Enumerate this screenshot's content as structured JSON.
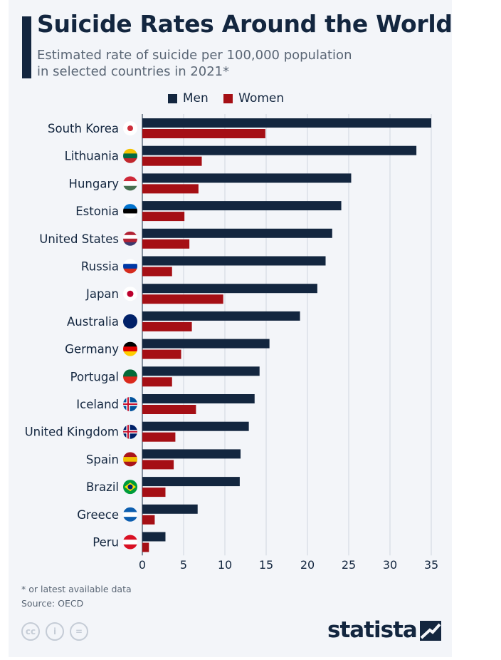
{
  "chart_data": {
    "type": "bar",
    "orientation": "horizontal",
    "title": "Suicide Rates Around the World",
    "subtitle_lines": [
      "Estimated rate of suicide per 100,000 population",
      "in selected countries in 2021*"
    ],
    "categories": [
      "South Korea",
      "Lithuania",
      "Hungary",
      "Estonia",
      "United States",
      "Russia",
      "Japan",
      "Australia",
      "Germany",
      "Portugal",
      "Iceland",
      "United Kingdom",
      "Spain",
      "Brazil",
      "Greece",
      "Peru"
    ],
    "series": [
      {
        "name": "Men",
        "color": "#13263f",
        "values": [
          35.0,
          33.2,
          25.3,
          24.1,
          23.0,
          22.2,
          21.2,
          19.1,
          15.4,
          14.2,
          13.6,
          12.9,
          11.9,
          11.8,
          6.7,
          2.8
        ]
      },
      {
        "name": "Women",
        "color": "#a50f15",
        "values": [
          14.9,
          7.2,
          6.8,
          5.1,
          5.7,
          3.6,
          9.8,
          6.0,
          4.7,
          3.6,
          6.5,
          4.0,
          3.8,
          2.8,
          1.5,
          0.8
        ]
      }
    ],
    "xlim": [
      0,
      35
    ],
    "xticks": [
      "0",
      "5",
      "10",
      "15",
      "20",
      "25",
      "30",
      "35"
    ],
    "grid": true,
    "legend": "top-center"
  },
  "flags": [
    [
      "#ffffff",
      "#ffffff"
    ],
    [
      "#f4c300",
      "#006a44",
      "#c1272d"
    ],
    [
      "#ce2939",
      "#ffffff",
      "#477050"
    ],
    [
      "#0072ce",
      "#000000",
      "#ffffff"
    ],
    [
      "#b22234",
      "#ffffff",
      "#b22234",
      "#3c3b6e"
    ],
    [
      "#ffffff",
      "#0039a6",
      "#d52b1e"
    ],
    [
      "#ffffff"
    ],
    [
      "#012169"
    ],
    [
      "#000000",
      "#dd0000",
      "#ffce00"
    ],
    [
      "#046a38",
      "#da291c"
    ],
    [
      "#02529c"
    ],
    [
      "#012169"
    ],
    [
      "#aa151b",
      "#f1bf00",
      "#aa151b"
    ],
    [
      "#009c3b"
    ],
    [
      "#0d5eaf",
      "#ffffff",
      "#0d5eaf"
    ],
    [
      "#d91023",
      "#ffffff",
      "#d91023"
    ]
  ],
  "footnote": "* or latest available data",
  "source": "Source: OECD",
  "license_icons": [
    "cc",
    "i",
    "="
  ],
  "brand": "statista"
}
